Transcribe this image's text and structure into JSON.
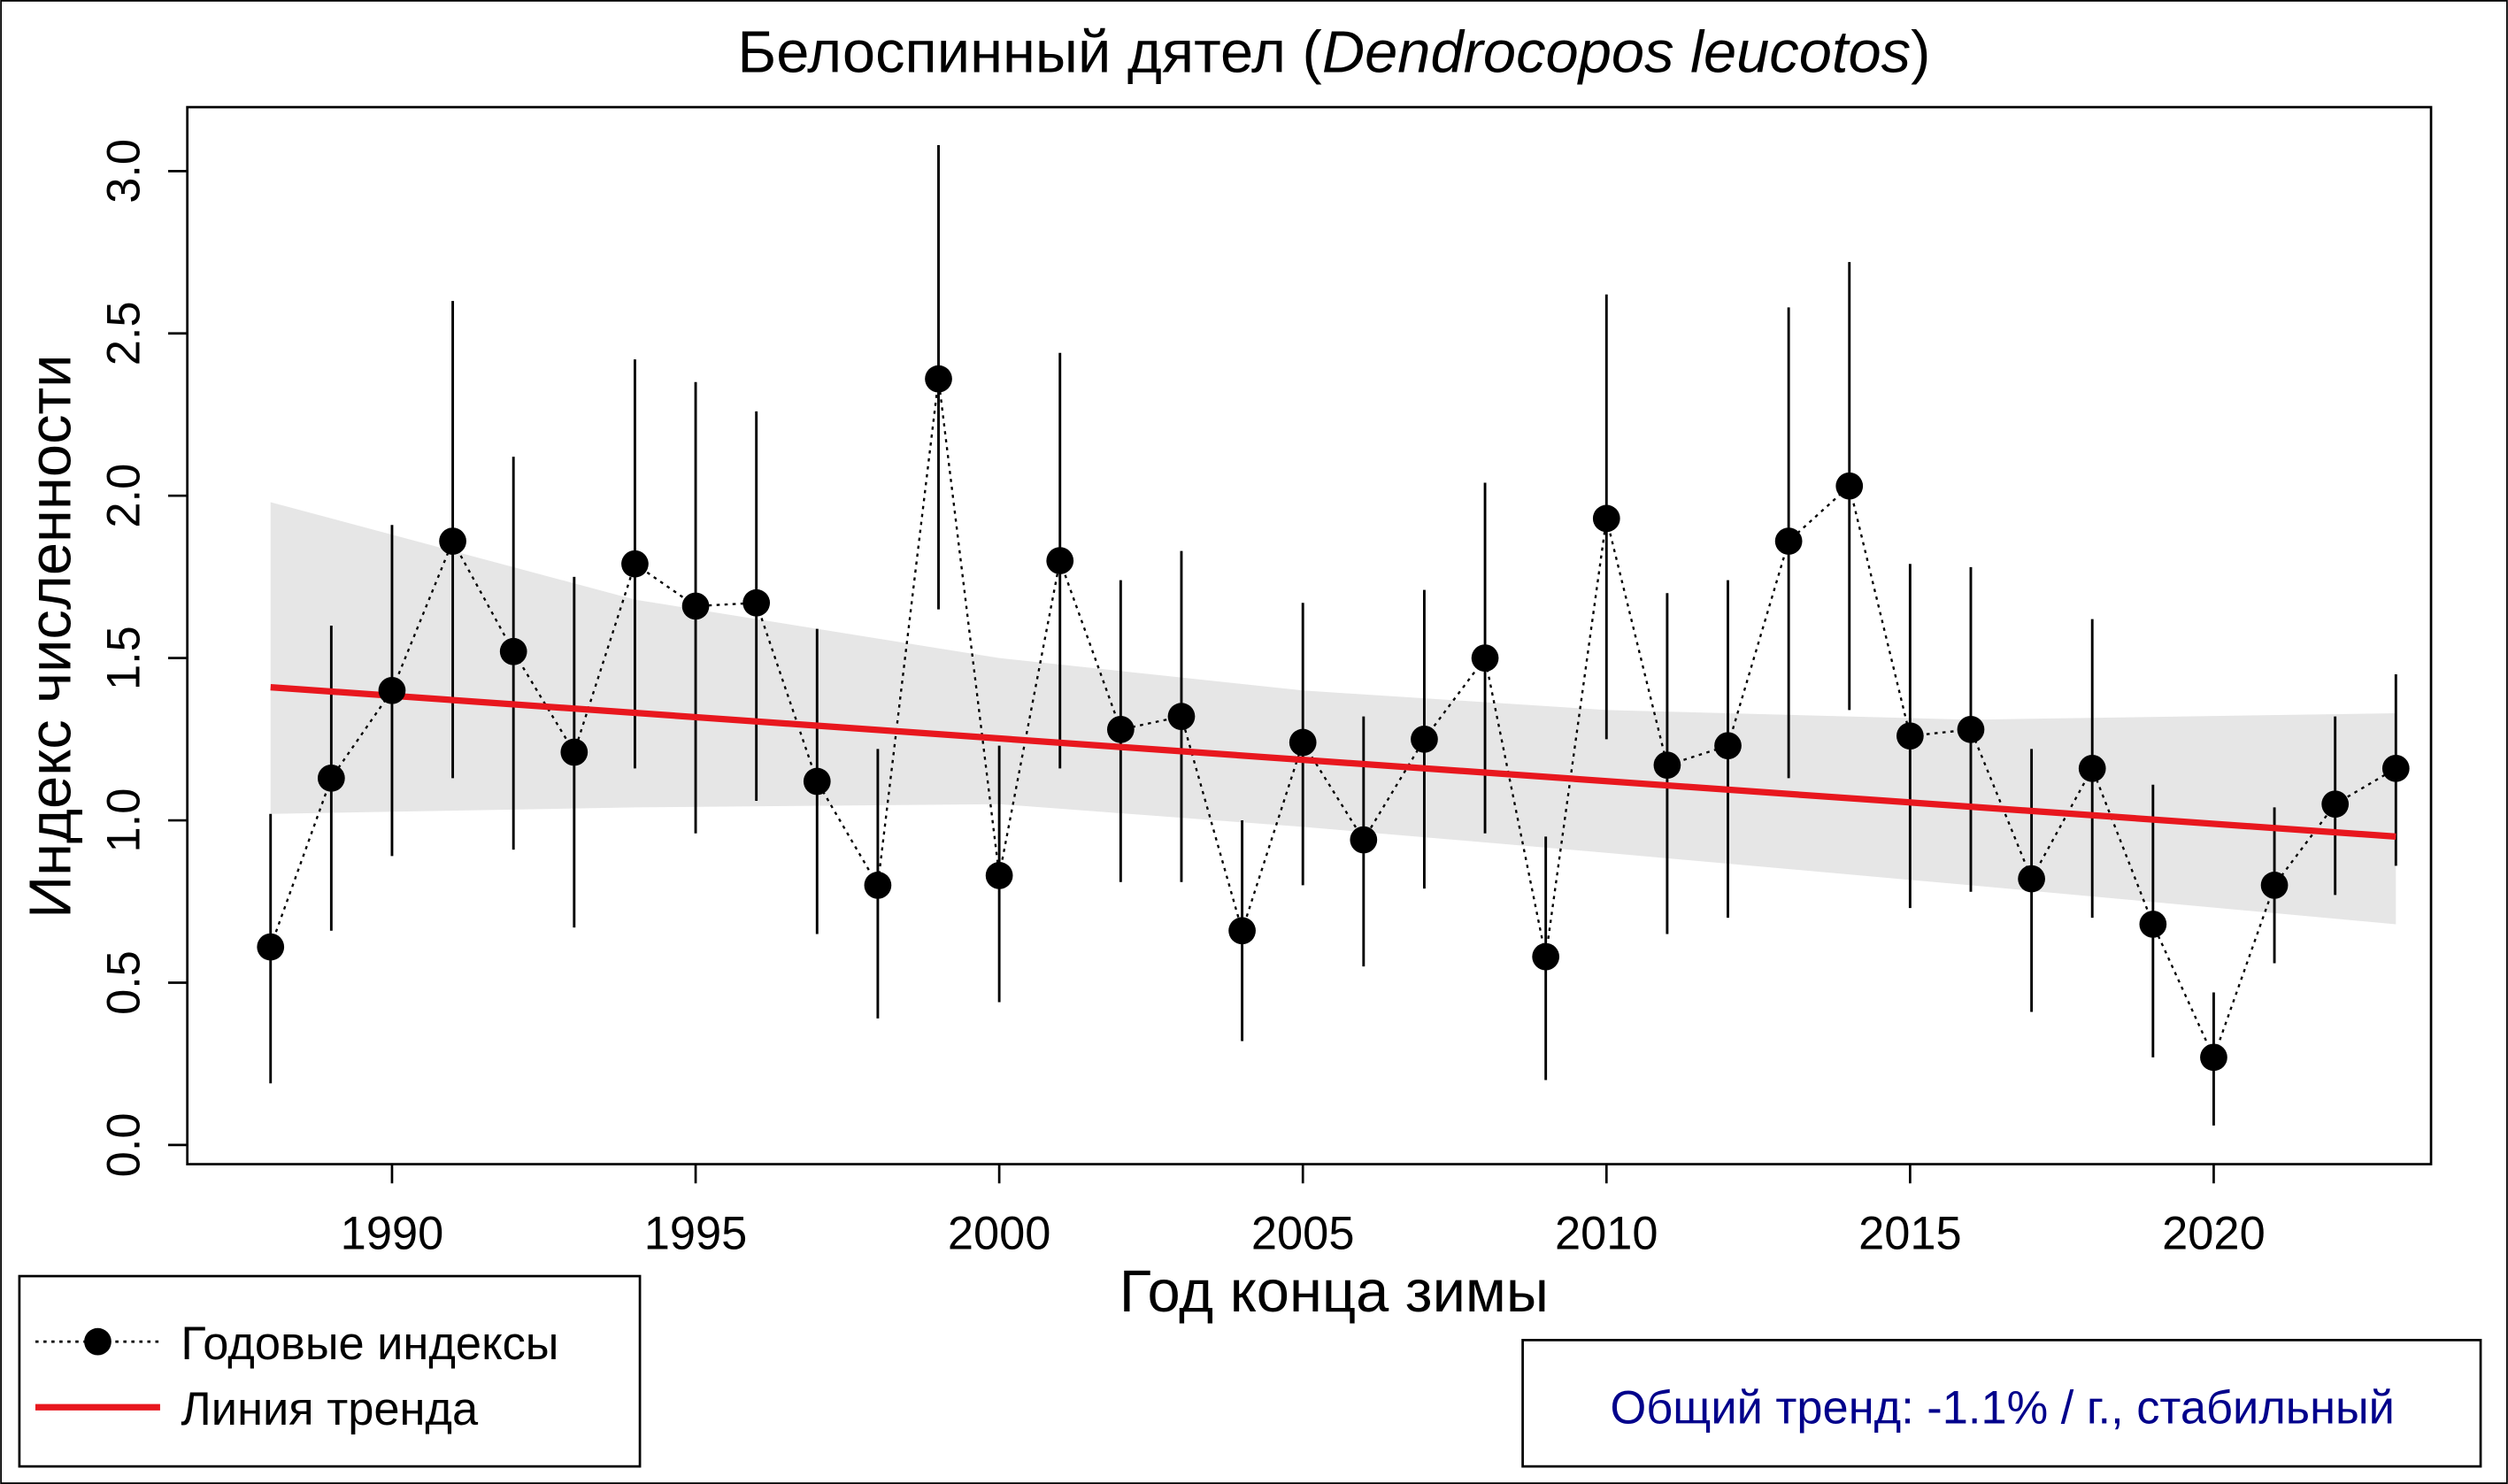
{
  "chart_data": {
    "type": "line",
    "title_main": "Белоспинный дятел (",
    "title_latin": "Dendrocopos leucotos",
    "title_end": ")",
    "xlabel": "Год конца зимы",
    "ylabel": "Индекс численности",
    "xlim": [
      1986.7,
      2024.1
    ],
    "ylim": [
      -0.05,
      3.2
    ],
    "x_ticks": [
      1990,
      1995,
      2000,
      2005,
      2010,
      2015,
      2020
    ],
    "y_ticks": [
      "0.0",
      "0.5",
      "1.0",
      "1.5",
      "2.0",
      "2.5",
      "3.0"
    ],
    "series": [
      {
        "name": "Годовые индексы",
        "x": [
          1988,
          1989,
          1990,
          1991,
          1992,
          1993,
          1994,
          1995,
          1996,
          1997,
          1998,
          1999,
          2000,
          2001,
          2002,
          2003,
          2004,
          2005,
          2006,
          2007,
          2008,
          2009,
          2010,
          2011,
          2012,
          2013,
          2014,
          2015,
          2016,
          2017,
          2018,
          2019,
          2020,
          2021,
          2022,
          2023
        ],
        "y": [
          0.61,
          1.13,
          1.4,
          1.86,
          1.52,
          1.21,
          1.79,
          1.66,
          1.67,
          1.12,
          0.8,
          2.36,
          0.83,
          1.8,
          1.28,
          1.32,
          0.66,
          1.24,
          0.94,
          1.25,
          1.5,
          0.58,
          1.93,
          1.17,
          1.23,
          1.86,
          2.03,
          1.26,
          1.28,
          0.82,
          1.16,
          0.68,
          0.27,
          0.8,
          1.05,
          1.16
        ],
        "upper": [
          1.02,
          1.6,
          1.91,
          2.6,
          2.12,
          1.75,
          2.42,
          2.35,
          2.26,
          1.59,
          1.22,
          3.08,
          1.23,
          2.44,
          1.74,
          1.83,
          1.0,
          1.67,
          1.32,
          1.71,
          2.04,
          0.95,
          2.62,
          1.7,
          1.74,
          2.58,
          2.72,
          1.79,
          1.78,
          1.22,
          1.62,
          1.11,
          0.47,
          1.04,
          1.32,
          1.45
        ],
        "lower": [
          0.19,
          0.66,
          0.89,
          1.13,
          0.91,
          0.67,
          1.16,
          0.96,
          1.06,
          0.65,
          0.39,
          1.65,
          0.44,
          1.16,
          0.81,
          0.81,
          0.32,
          0.8,
          0.55,
          0.79,
          0.96,
          0.2,
          1.25,
          0.65,
          0.7,
          1.13,
          1.34,
          0.73,
          0.78,
          0.41,
          0.7,
          0.27,
          0.06,
          0.56,
          0.77,
          0.86
        ]
      }
    ],
    "trend": {
      "name": "Линия тренда",
      "x": [
        1988,
        2023
      ],
      "y": [
        1.41,
        0.95
      ],
      "color": "#e8171e"
    },
    "trend_band": {
      "x": [
        1988,
        1994,
        2000,
        2005,
        2010,
        2016,
        2023
      ],
      "upper": [
        1.98,
        1.68,
        1.5,
        1.4,
        1.34,
        1.31,
        1.33
      ],
      "lower": [
        1.02,
        1.04,
        1.05,
        0.98,
        0.9,
        0.8,
        0.68
      ]
    },
    "legend": {
      "placement": "bottom-left",
      "items": [
        "Годовые индексы",
        "Линия тренда"
      ]
    },
    "annotation": "Общий тренд: -1.1% / г., стабильный",
    "annotation_color": "#00008b",
    "band_color": "#e6e6e6"
  }
}
